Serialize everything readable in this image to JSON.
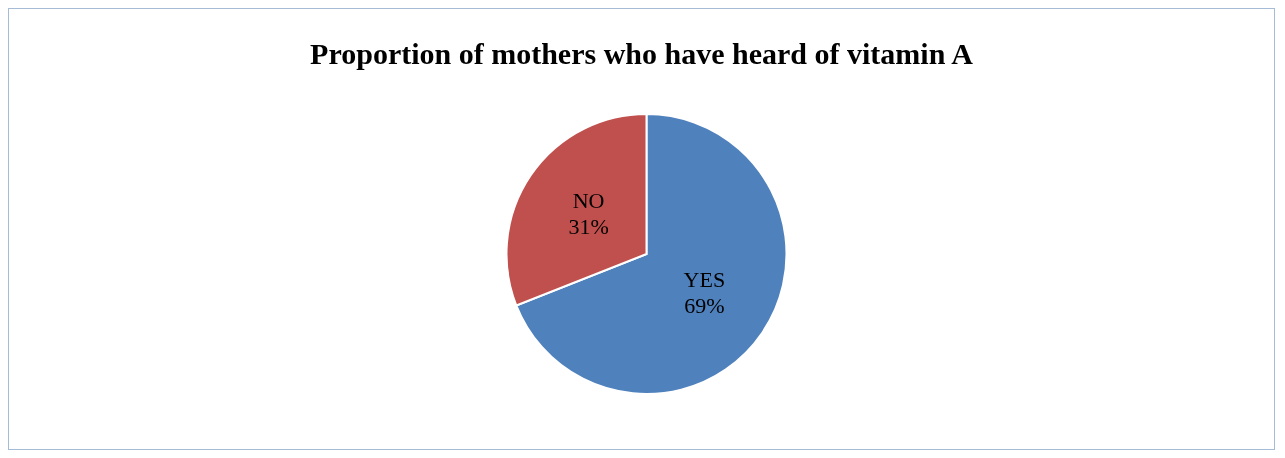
{
  "chart_data": {
    "type": "pie",
    "title": "Proportion of mothers who have heard of vitamin A",
    "categories": [
      "YES",
      "NO"
    ],
    "values": [
      69,
      31
    ],
    "value_labels": [
      "69%",
      "31%"
    ],
    "colors": [
      "#4f81bd",
      "#c0504d"
    ],
    "legend": false
  }
}
